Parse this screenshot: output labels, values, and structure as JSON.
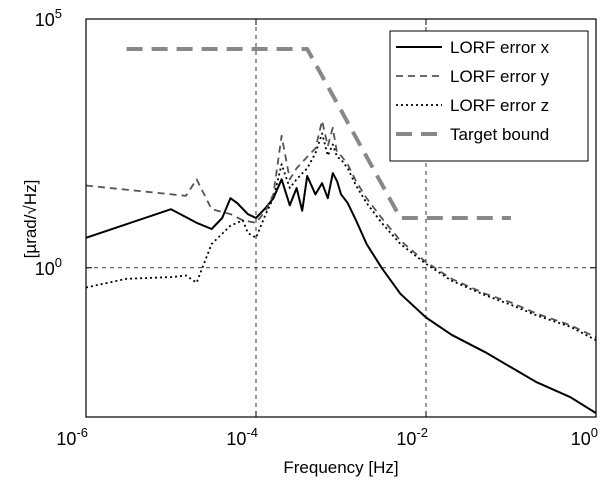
{
  "chart_data": {
    "type": "line",
    "xlabel": "Frequency [Hz]",
    "ylabel": "[µrad/√Hz]",
    "xscale": "log",
    "yscale": "log",
    "xlim": [
      1e-06,
      1
    ],
    "ylim": [
      0.001,
      100000
    ],
    "x_ticks": [
      {
        "value": 1e-06,
        "base": "10",
        "exp": "-6"
      },
      {
        "value": 0.0001,
        "base": "10",
        "exp": "-4"
      },
      {
        "value": 0.01,
        "base": "10",
        "exp": "-2"
      },
      {
        "value": 1,
        "base": "10",
        "exp": "0"
      }
    ],
    "y_ticks": [
      {
        "value": 1,
        "label": "10",
        "exp": "0",
        "text": "1.0 •"
      },
      {
        "value": 100000,
        "label": "10",
        "exp": "5"
      }
    ],
    "y_tick_labels": [
      {
        "value": 100000,
        "base": "10",
        "exp": "5"
      },
      {
        "value": 1,
        "base": "10",
        "exp": "0"
      }
    ],
    "grid": "dashed at major ticks",
    "legend_position": "top-right",
    "series": [
      {
        "name": "LORF error x",
        "color": "#000000",
        "dash": "solid",
        "width": 2,
        "points": [
          [
            1e-06,
            4
          ],
          [
            1e-05,
            15
          ],
          [
            2e-05,
            8
          ],
          [
            3e-05,
            6
          ],
          [
            4e-05,
            10
          ],
          [
            5e-05,
            25
          ],
          [
            6e-05,
            20
          ],
          [
            8e-05,
            12
          ],
          [
            0.0001,
            10
          ],
          [
            0.00013,
            16
          ],
          [
            0.00016,
            25
          ],
          [
            0.0002,
            60
          ],
          [
            0.00025,
            18
          ],
          [
            0.0003,
            40
          ],
          [
            0.00035,
            14
          ],
          [
            0.0004,
            70
          ],
          [
            0.0005,
            30
          ],
          [
            0.0006,
            50
          ],
          [
            0.0007,
            25
          ],
          [
            0.0008,
            80
          ],
          [
            0.0009,
            55
          ],
          [
            0.001,
            30
          ],
          [
            0.0012,
            20
          ],
          [
            0.0015,
            9
          ],
          [
            0.002,
            3
          ],
          [
            0.003,
            1
          ],
          [
            0.005,
            0.3
          ],
          [
            0.01,
            0.1
          ],
          [
            0.02,
            0.045
          ],
          [
            0.05,
            0.02
          ],
          [
            0.1,
            0.01
          ],
          [
            0.2,
            0.005
          ],
          [
            0.5,
            0.0025
          ],
          [
            1,
            0.0012
          ]
        ]
      },
      {
        "name": "LORF error y",
        "color": "#555555",
        "dash": "7,5",
        "width": 1.8,
        "points": [
          [
            1e-06,
            45
          ],
          [
            1e-05,
            30
          ],
          [
            1.5e-05,
            28
          ],
          [
            2e-05,
            60
          ],
          [
            3e-05,
            15
          ],
          [
            5e-05,
            12
          ],
          [
            7e-05,
            9
          ],
          [
            0.0001,
            8
          ],
          [
            0.00013,
            14
          ],
          [
            0.00016,
            30
          ],
          [
            0.0002,
            450
          ],
          [
            0.00025,
            60
          ],
          [
            0.0003,
            100
          ],
          [
            0.0004,
            170
          ],
          [
            0.0005,
            250
          ],
          [
            0.0006,
            900
          ],
          [
            0.0007,
            280
          ],
          [
            0.0008,
            650
          ],
          [
            0.0009,
            200
          ],
          [
            0.001,
            180
          ],
          [
            0.0012,
            120
          ],
          [
            0.0015,
            55
          ],
          [
            0.002,
            25
          ],
          [
            0.003,
            10
          ],
          [
            0.005,
            3.5
          ],
          [
            0.01,
            1.3
          ],
          [
            0.02,
            0.6
          ],
          [
            0.05,
            0.3
          ],
          [
            0.1,
            0.2
          ],
          [
            0.2,
            0.12
          ],
          [
            0.5,
            0.07
          ],
          [
            1,
            0.04
          ]
        ]
      },
      {
        "name": "LORF error z",
        "color": "#000000",
        "dash": "2,3",
        "width": 1.8,
        "points": [
          [
            1e-06,
            0.4
          ],
          [
            3e-06,
            0.6
          ],
          [
            1e-05,
            0.65
          ],
          [
            1.5e-05,
            0.7
          ],
          [
            2e-05,
            0.5
          ],
          [
            3e-05,
            3
          ],
          [
            5e-05,
            7
          ],
          [
            7e-05,
            9
          ],
          [
            8e-05,
            5
          ],
          [
            0.0001,
            4
          ],
          [
            0.00013,
            12
          ],
          [
            0.00016,
            25
          ],
          [
            0.0002,
            120
          ],
          [
            0.00025,
            40
          ],
          [
            0.0003,
            60
          ],
          [
            0.0004,
            100
          ],
          [
            0.0005,
            200
          ],
          [
            0.0006,
            500
          ],
          [
            0.0007,
            180
          ],
          [
            0.0008,
            300
          ],
          [
            0.0009,
            170
          ],
          [
            0.001,
            150
          ],
          [
            0.0012,
            100
          ],
          [
            0.0015,
            45
          ],
          [
            0.002,
            20
          ],
          [
            0.003,
            8
          ],
          [
            0.005,
            3
          ],
          [
            0.01,
            1.2
          ],
          [
            0.02,
            0.55
          ],
          [
            0.05,
            0.28
          ],
          [
            0.1,
            0.18
          ],
          [
            0.2,
            0.11
          ],
          [
            0.5,
            0.065
          ],
          [
            1,
            0.035
          ]
        ]
      },
      {
        "name": "Target bound",
        "color": "#888888",
        "dash": "16,9",
        "width": 4,
        "points": [
          [
            3e-06,
            25000
          ],
          [
            0.0004,
            25000
          ],
          [
            0.005,
            10
          ],
          [
            0.1,
            10
          ]
        ]
      }
    ]
  }
}
